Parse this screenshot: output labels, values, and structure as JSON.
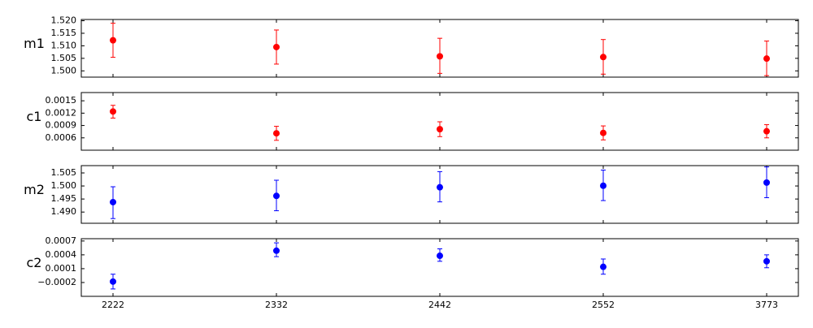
{
  "chart_data": [
    {
      "type": "scatter",
      "panel_label": "m1",
      "color": "#ff0000",
      "x": [
        "2222",
        "2332",
        "2442",
        "2552",
        "3773"
      ],
      "series": [
        {
          "values": [
            1.5122,
            1.5095,
            1.5058,
            1.5055,
            1.5049
          ],
          "err_low": [
            1.5054,
            1.5027,
            1.499,
            1.4987,
            1.4981
          ],
          "err_high": [
            1.519,
            1.5163,
            1.513,
            1.5125,
            1.5119
          ]
        }
      ],
      "ylim": [
        1.4975,
        1.5205
      ],
      "yticks": [
        "1.500",
        "1.505",
        "1.510",
        "1.515",
        "1.520"
      ],
      "ytick_values": [
        1.5,
        1.505,
        1.51,
        1.515,
        1.52
      ]
    },
    {
      "type": "scatter",
      "panel_label": "c1",
      "color": "#ff0000",
      "x": [
        "2222",
        "2332",
        "2442",
        "2552",
        "3773"
      ],
      "series": [
        {
          "values": [
            0.00124,
            0.00071,
            0.00081,
            0.00072,
            0.00076
          ],
          "err_low": [
            0.00108,
            0.00054,
            0.00063,
            0.00055,
            0.0006
          ],
          "err_high": [
            0.00139,
            0.00088,
            0.00099,
            0.00089,
            0.00092
          ]
        }
      ],
      "ylim": [
        0.0003,
        0.0017
      ],
      "yticks": [
        "0.0006",
        "0.0009",
        "0.0012",
        "0.0015"
      ],
      "ytick_values": [
        0.0006,
        0.0009,
        0.0012,
        0.0015
      ]
    },
    {
      "type": "scatter",
      "panel_label": "m2",
      "color": "#0000ff",
      "x": [
        "2222",
        "2332",
        "2442",
        "2552",
        "3773"
      ],
      "series": [
        {
          "values": [
            1.4938,
            1.4962,
            1.4995,
            1.5001,
            1.5013
          ],
          "err_low": [
            1.4875,
            1.4905,
            1.4939,
            1.4944,
            1.4955
          ],
          "err_high": [
            1.4997,
            1.5022,
            1.5055,
            1.5061,
            1.5073
          ]
        }
      ],
      "ylim": [
        1.4857,
        1.5078
      ],
      "yticks": [
        "1.490",
        "1.495",
        "1.500",
        "1.505"
      ],
      "ytick_values": [
        1.49,
        1.495,
        1.5,
        1.505
      ]
    },
    {
      "type": "scatter",
      "panel_label": "c2",
      "color": "#0000ff",
      "x": [
        "2222",
        "2332",
        "2442",
        "2552",
        "3773"
      ],
      "series": [
        {
          "values": [
            -0.00018,
            0.00049,
            0.00038,
            0.00014,
            0.00026
          ],
          "err_low": [
            -0.00034,
            0.00036,
            0.00026,
            -2e-05,
            0.00012
          ],
          "err_high": [
            -2e-05,
            0.00066,
            0.00053,
            0.00031,
            0.0004
          ]
        }
      ],
      "ylim": [
        -0.0005,
        0.00075
      ],
      "yticks": [
        "−0.0002",
        "0.0001",
        "0.0004",
        "0.0007"
      ],
      "ytick_values": [
        -0.0002,
        0.0001,
        0.0004,
        0.0007
      ]
    }
  ]
}
